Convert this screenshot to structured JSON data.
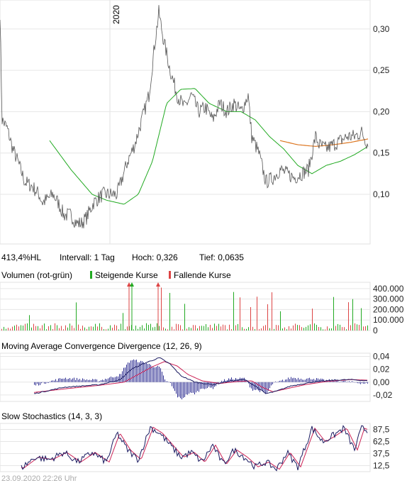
{
  "year_label": "2020",
  "info": {
    "range": "413,4%HL",
    "interval": "Intervall: 1 Tag",
    "high": "Hoch:  0,326",
    "low": "Tief: 0,0635"
  },
  "volume": {
    "title": "Volumen (rot-grün)",
    "legend_up": "Steigende Kurse",
    "legend_down": "Fallende Kurse",
    "ticks": [
      "400.000",
      "300.000",
      "200.000",
      "100.000",
      "0"
    ],
    "tick_values": [
      400000,
      300000,
      200000,
      100000,
      0
    ],
    "ymax": 460000,
    "colors": {
      "up": "#22aa22",
      "down": "#dd4444"
    }
  },
  "macd": {
    "title": "Moving Average Convergence Divergence (12, 26, 9)",
    "ticks": [
      "0,04",
      "0,02",
      "0,00",
      "-0,02"
    ],
    "tick_values": [
      0.04,
      0.02,
      0.0,
      -0.02
    ],
    "ylim": [
      -0.03,
      0.045
    ],
    "colors": {
      "macd": "#1a1a60",
      "signal": "#cc2255",
      "hist": "#2a2a90"
    }
  },
  "stoch": {
    "title": "Slow Stochastics (14, 3, 3)",
    "ticks": [
      "87,5",
      "62,5",
      "37,5",
      "12,5"
    ],
    "tick_values": [
      87.5,
      62.5,
      37.5,
      12.5
    ],
    "ylim": [
      0,
      100
    ],
    "colors": {
      "k": "#1a1a60",
      "d": "#cc2255"
    }
  },
  "footer": "23.09.2020 22:26 Uhr",
  "chart_data": {
    "type": "line",
    "ylim": [
      0.04,
      0.335
    ],
    "y_ticks": [
      "0,30",
      "0,25",
      "0,20",
      "0,15",
      "0,10"
    ],
    "y_tick_values": [
      0.3,
      0.25,
      0.2,
      0.15,
      0.1
    ],
    "grid": true,
    "colors": {
      "price": "#555555",
      "ma_short": "#22aa22",
      "ma_long": "#dd7722"
    },
    "price_anchors": [
      [
        0,
        0.32
      ],
      [
        3,
        0.19
      ],
      [
        10,
        0.18
      ],
      [
        18,
        0.155
      ],
      [
        25,
        0.14
      ],
      [
        35,
        0.115
      ],
      [
        45,
        0.11
      ],
      [
        55,
        0.1
      ],
      [
        60,
        0.09
      ],
      [
        68,
        0.095
      ],
      [
        75,
        0.1
      ],
      [
        82,
        0.09
      ],
      [
        90,
        0.075
      ],
      [
        100,
        0.075
      ],
      [
        108,
        0.065
      ],
      [
        115,
        0.065
      ],
      [
        122,
        0.072
      ],
      [
        132,
        0.09
      ],
      [
        145,
        0.1
      ],
      [
        165,
        0.1
      ],
      [
        180,
        0.14
      ],
      [
        190,
        0.16
      ],
      [
        200,
        0.19
      ],
      [
        210,
        0.22
      ],
      [
        218,
        0.28
      ],
      [
        224,
        0.32
      ],
      [
        230,
        0.29
      ],
      [
        240,
        0.25
      ],
      [
        250,
        0.22
      ],
      [
        260,
        0.205
      ],
      [
        270,
        0.22
      ],
      [
        280,
        0.2
      ],
      [
        290,
        0.205
      ],
      [
        300,
        0.19
      ],
      [
        310,
        0.21
      ],
      [
        320,
        0.2
      ],
      [
        330,
        0.21
      ],
      [
        340,
        0.2
      ],
      [
        350,
        0.22
      ],
      [
        355,
        0.17
      ],
      [
        365,
        0.15
      ],
      [
        375,
        0.115
      ],
      [
        385,
        0.12
      ],
      [
        395,
        0.13
      ],
      [
        405,
        0.125
      ],
      [
        415,
        0.12
      ],
      [
        425,
        0.125
      ],
      [
        435,
        0.13
      ],
      [
        445,
        0.17
      ],
      [
        450,
        0.16
      ],
      [
        460,
        0.155
      ],
      [
        470,
        0.16
      ],
      [
        480,
        0.165
      ],
      [
        490,
        0.17
      ],
      [
        500,
        0.17
      ],
      [
        510,
        0.175
      ],
      [
        519,
        0.16
      ]
    ],
    "ma_short_anchors": [
      [
        70,
        0.165
      ],
      [
        100,
        0.13
      ],
      [
        130,
        0.1
      ],
      [
        150,
        0.093
      ],
      [
        175,
        0.088
      ],
      [
        195,
        0.1
      ],
      [
        215,
        0.14
      ],
      [
        235,
        0.21
      ],
      [
        255,
        0.227
      ],
      [
        275,
        0.228
      ],
      [
        295,
        0.21
      ],
      [
        320,
        0.2
      ],
      [
        340,
        0.2
      ],
      [
        360,
        0.19
      ],
      [
        380,
        0.17
      ],
      [
        400,
        0.155
      ],
      [
        420,
        0.135
      ],
      [
        440,
        0.125
      ],
      [
        460,
        0.135
      ],
      [
        480,
        0.14
      ],
      [
        500,
        0.148
      ],
      [
        519,
        0.158
      ]
    ],
    "ma_long_anchors": [
      [
        395,
        0.165
      ],
      [
        420,
        0.16
      ],
      [
        445,
        0.158
      ],
      [
        470,
        0.16
      ],
      [
        495,
        0.163
      ],
      [
        519,
        0.167
      ]
    ]
  }
}
